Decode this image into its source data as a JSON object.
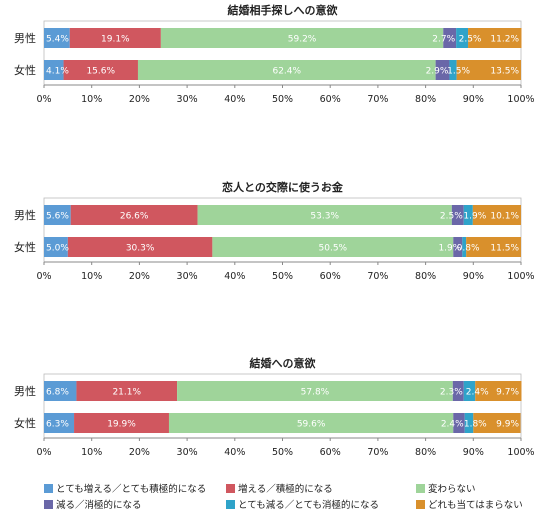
{
  "colors": {
    "c1": "#5b9bd5",
    "c2": "#d0575f",
    "c3": "#9fd49a",
    "c4": "#6a67a8",
    "c5": "#2fa3c9",
    "c6": "#d9902c"
  },
  "chart_data": [
    {
      "type": "bar",
      "orientation": "horizontal",
      "stacked": true,
      "title": "結婚相手探しへの意欲",
      "categories": [
        "男性",
        "女性"
      ],
      "xlim": [
        0,
        100
      ],
      "x_ticks": [
        "0%",
        "10%",
        "20%",
        "30%",
        "40%",
        "50%",
        "60%",
        "70%",
        "80%",
        "90%",
        "100%"
      ],
      "series": [
        {
          "name": "とても増える／とても積極的になる",
          "values": [
            5.4,
            4.1
          ],
          "labels": [
            "5.4%",
            "4.1%"
          ]
        },
        {
          "name": "増える／積極的になる",
          "values": [
            19.1,
            15.6
          ],
          "labels": [
            "19.1%",
            "15.6%"
          ]
        },
        {
          "name": "変わらない",
          "values": [
            59.2,
            62.4
          ],
          "labels": [
            "59.2%",
            "62.4%"
          ]
        },
        {
          "name": "減る／消極的になる",
          "values": [
            2.7,
            2.9
          ],
          "labels": [
            "2.7%",
            "2.9%"
          ]
        },
        {
          "name": "とても減る／とても消極的になる",
          "values": [
            2.5,
            1.5
          ],
          "labels": [
            "2.5%",
            "1.5%"
          ]
        },
        {
          "name": "どれも当てはまらない",
          "values": [
            11.2,
            13.5
          ],
          "labels": [
            "11.2%",
            "13.5%"
          ]
        }
      ]
    },
    {
      "type": "bar",
      "orientation": "horizontal",
      "stacked": true,
      "title": "恋人との交際に使うお金",
      "categories": [
        "男性",
        "女性"
      ],
      "xlim": [
        0,
        100
      ],
      "x_ticks": [
        "0%",
        "10%",
        "20%",
        "30%",
        "40%",
        "50%",
        "60%",
        "70%",
        "80%",
        "90%",
        "100%"
      ],
      "series": [
        {
          "name": "とても増える／とても積極的になる",
          "values": [
            5.6,
            5.0
          ],
          "labels": [
            "5.6%",
            "5.0%"
          ]
        },
        {
          "name": "増える／積極的になる",
          "values": [
            26.6,
            30.3
          ],
          "labels": [
            "26.6%",
            "30.3%"
          ]
        },
        {
          "name": "変わらない",
          "values": [
            53.3,
            50.5
          ],
          "labels": [
            "53.3%",
            "50.5%"
          ]
        },
        {
          "name": "減る／消極的になる",
          "values": [
            2.5,
            1.9
          ],
          "labels": [
            "2.5%",
            "1.9%"
          ]
        },
        {
          "name": "とても減る／とても消極的になる",
          "values": [
            1.9,
            0.8
          ],
          "labels": [
            "1.9%",
            "0.8%"
          ]
        },
        {
          "name": "どれも当てはまらない",
          "values": [
            10.1,
            11.5
          ],
          "labels": [
            "10.1%",
            "11.5%"
          ]
        }
      ]
    },
    {
      "type": "bar",
      "orientation": "horizontal",
      "stacked": true,
      "title": "結婚への意欲",
      "categories": [
        "男性",
        "女性"
      ],
      "xlim": [
        0,
        100
      ],
      "x_ticks": [
        "0%",
        "10%",
        "20%",
        "30%",
        "40%",
        "50%",
        "60%",
        "70%",
        "80%",
        "90%",
        "100%"
      ],
      "series": [
        {
          "name": "とても増える／とても積極的になる",
          "values": [
            6.8,
            6.3
          ],
          "labels": [
            "6.8%",
            "6.3%"
          ]
        },
        {
          "name": "増える／積極的になる",
          "values": [
            21.1,
            19.9
          ],
          "labels": [
            "21.1%",
            "19.9%"
          ]
        },
        {
          "name": "変わらない",
          "values": [
            57.8,
            59.6
          ],
          "labels": [
            "57.8%",
            "59.6%"
          ]
        },
        {
          "name": "減る／消極的になる",
          "values": [
            2.3,
            2.4
          ],
          "labels": [
            "2.3%",
            "2.4%"
          ]
        },
        {
          "name": "とても減る／とても消極的になる",
          "values": [
            2.4,
            1.8
          ],
          "labels": [
            "2.4%",
            "1.8%"
          ]
        },
        {
          "name": "どれも当てはまらない",
          "values": [
            9.7,
            9.9
          ],
          "labels": [
            "9.7%",
            "9.9%"
          ]
        }
      ]
    }
  ],
  "legend": [
    {
      "label": "とても増える／とても積極的になる",
      "color_key": "c1"
    },
    {
      "label": "増える／積極的になる",
      "color_key": "c2"
    },
    {
      "label": "変わらない",
      "color_key": "c3"
    },
    {
      "label": "減る／消極的になる",
      "color_key": "c4"
    },
    {
      "label": "とても減る／とても消極的になる",
      "color_key": "c5"
    },
    {
      "label": "どれも当てはまらない",
      "color_key": "c6"
    }
  ]
}
